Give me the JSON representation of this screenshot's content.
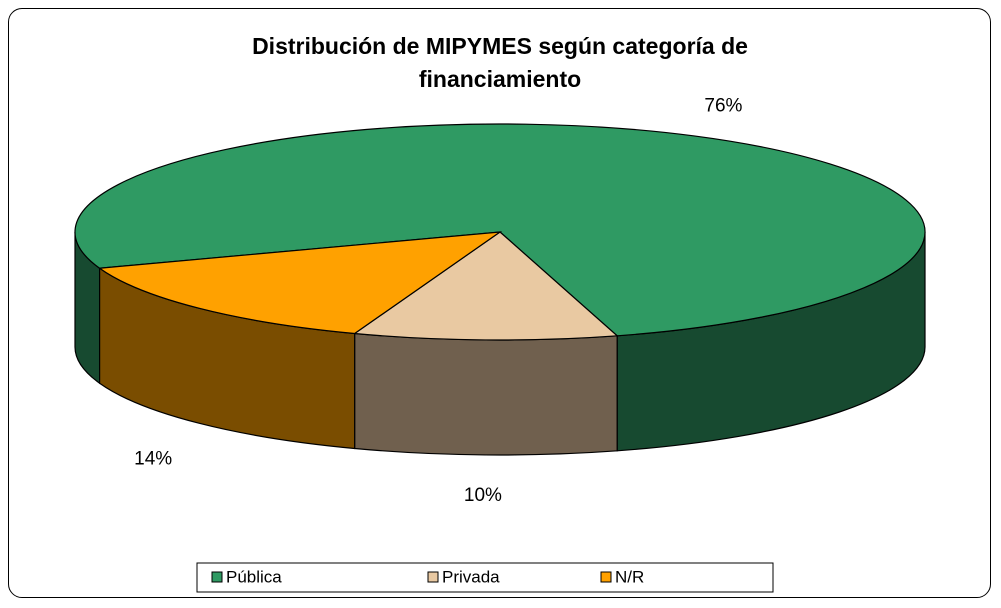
{
  "chart_data": {
    "type": "pie",
    "title": "Distribución de MIPYMES según categoría de financiamiento",
    "categories": [
      "Pública",
      "Privada",
      "N/R"
    ],
    "values": [
      76,
      10,
      14
    ],
    "value_labels": [
      "76%",
      "10%",
      "14%"
    ],
    "colors": [
      "#2f9a63",
      "#e9c9a2",
      "#ffa100"
    ],
    "legend": "bottom"
  }
}
